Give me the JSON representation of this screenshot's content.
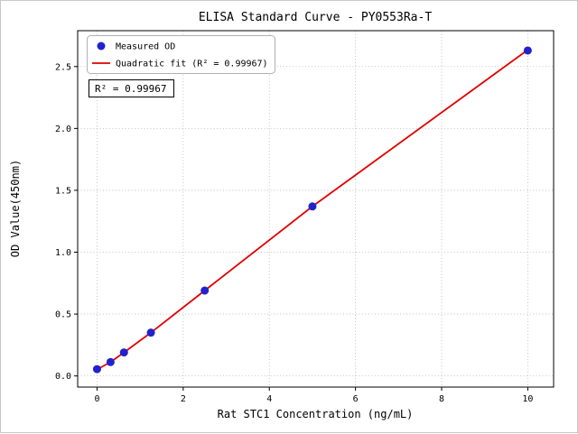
{
  "chart_data": {
    "type": "scatter",
    "title": "ELISA Standard Curve - PY0553Ra-T",
    "xlabel": "Rat STC1 Concentration (ng/mL)",
    "ylabel": "OD Value(450nm)",
    "xlim": [
      -0.45,
      10.6
    ],
    "ylim": [
      -0.09,
      2.79
    ],
    "xticks": [
      0,
      2,
      4,
      6,
      8,
      10
    ],
    "xtick_labels": [
      "0",
      "2",
      "4",
      "6",
      "8",
      "10"
    ],
    "yticks": [
      0,
      0.5,
      1.0,
      1.5,
      2.0,
      2.5
    ],
    "ytick_labels": [
      "0.0",
      "0.5",
      "1.0",
      "1.5",
      "2.0",
      "2.5"
    ],
    "grid": true,
    "legend_position": "upper left",
    "series": [
      {
        "name": "Measured OD",
        "type": "scatter",
        "color": "#2222cc",
        "x": [
          0,
          0.313,
          0.625,
          1.25,
          2.5,
          5,
          10
        ],
        "y": [
          0.055,
          0.112,
          0.19,
          0.35,
          0.69,
          1.37,
          2.63
        ]
      },
      {
        "name": "Quadratic fit",
        "type": "line",
        "color": "#e00000",
        "x": [
          0,
          0.313,
          0.625,
          1.25,
          2.5,
          5,
          10
        ],
        "y": [
          0.052,
          0.112,
          0.19,
          0.35,
          0.69,
          1.37,
          2.635
        ]
      }
    ],
    "legend": [
      {
        "label": "Measured OD",
        "marker": "dot",
        "color": "#2222cc"
      },
      {
        "label": "Quadratic fit (R² = 0.99967)",
        "marker": "line",
        "color": "#e00000"
      }
    ],
    "annotation": "R² = 0.99967",
    "r_squared": 0.99967
  }
}
